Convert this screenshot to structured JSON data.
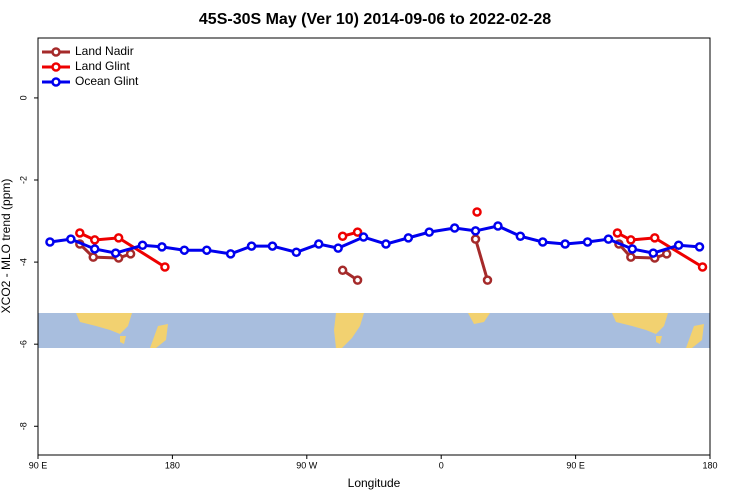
{
  "chart_data": {
    "type": "line",
    "title": "45S-30S May (Ver 10)   2014-09-06 to 2022-02-28",
    "xlabel": "Longitude",
    "ylabel": "XCO2 - MLO trend (ppm)",
    "xlim": [
      90,
      540
    ],
    "ylim": [
      -8.7,
      1.46
    ],
    "xticks": [
      {
        "value": 90,
        "label": "90 E"
      },
      {
        "value": 180,
        "label": "180"
      },
      {
        "value": 270,
        "label": "90 W"
      },
      {
        "value": 360,
        "label": "0"
      },
      {
        "value": 450,
        "label": "90 E"
      },
      {
        "value": 540,
        "label": "180"
      }
    ],
    "yticks": [
      0,
      -2,
      -4,
      -6,
      -8
    ],
    "legend": "top-left",
    "series": [
      {
        "name": "Land Nadir",
        "color": "#a52a2a",
        "x": [
          118,
          127,
          144,
          152,
          null,
          294,
          304,
          null,
          383,
          391,
          null,
          479,
          487,
          503,
          511
        ],
        "values": [
          -3.56,
          -3.88,
          -3.9,
          -3.8,
          null,
          -4.2,
          -4.44,
          null,
          -3.44,
          -4.44,
          null,
          -3.56,
          -3.88,
          -3.9,
          -3.8
        ]
      },
      {
        "name": "Land Glint",
        "color": "#ee0000",
        "x": [
          118,
          128,
          144,
          175,
          null,
          294,
          304,
          null,
          384,
          null,
          478,
          487,
          503,
          535
        ],
        "values": [
          -3.29,
          -3.46,
          -3.41,
          -4.12,
          null,
          -3.37,
          -3.27,
          null,
          -2.78,
          null,
          -3.29,
          -3.46,
          -3.41,
          -4.12
        ]
      },
      {
        "name": "Ocean Glint",
        "color": "#0000ee",
        "x": [
          98,
          112,
          128,
          142,
          160,
          173,
          188,
          203,
          219,
          233,
          247,
          263,
          278,
          291,
          308,
          323,
          338,
          352,
          369,
          383,
          398,
          413,
          428,
          443,
          458,
          472,
          488,
          502,
          519,
          533
        ],
        "values": [
          -3.51,
          -3.44,
          -3.68,
          -3.78,
          -3.59,
          -3.63,
          -3.71,
          -3.71,
          -3.8,
          -3.61,
          -3.61,
          -3.76,
          -3.56,
          -3.66,
          -3.39,
          -3.56,
          -3.41,
          -3.27,
          -3.17,
          -3.24,
          -3.12,
          -3.37,
          -3.51,
          -3.56,
          -3.51,
          -3.44,
          -3.68,
          -3.78,
          -3.59,
          -3.63
        ]
      }
    ]
  }
}
